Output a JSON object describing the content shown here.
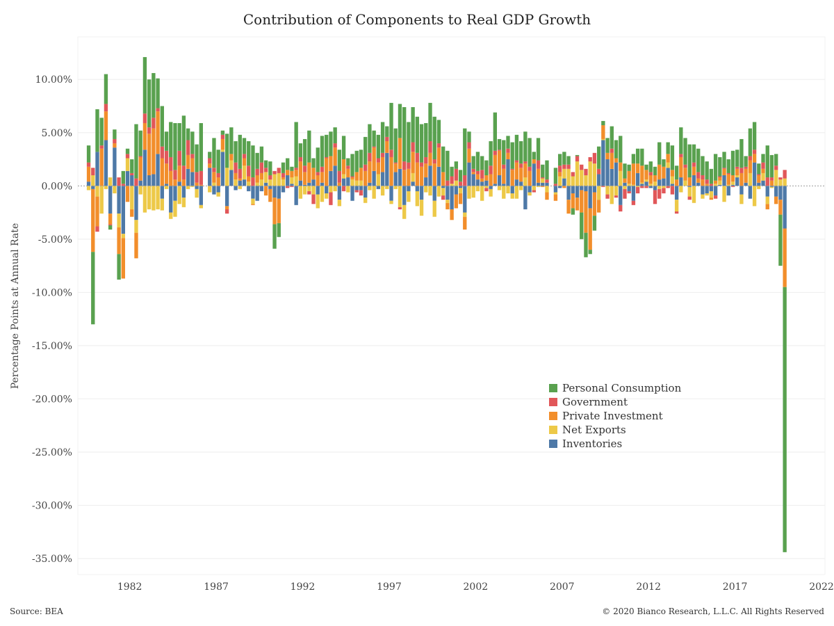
{
  "title": "Contribution of Components to Real GDP Growth",
  "footer": {
    "source": "Source: BEA",
    "copyright": "© 2020 Bianco Research, L.L.C. All Rights Reserved"
  },
  "chart_data": {
    "type": "bar",
    "stacked": true,
    "title": "Contribution of Components to Real GDP Growth",
    "xlabel": "",
    "ylabel": "Percentage Points at Annual Rate",
    "ylim": [
      -36.5,
      14
    ],
    "xlim": [
      1979.5,
      2022.7
    ],
    "y_ticks": [
      10,
      5,
      0,
      -5,
      -10,
      -15,
      -20,
      -25,
      -30,
      -35
    ],
    "y_tick_labels": [
      "10.00%",
      "5.00%",
      "0.00%",
      "-5.00%",
      "-10.00%",
      "-15.00%",
      "-20.00%",
      "-25.00%",
      "-30.00%",
      "-35.00%"
    ],
    "x_ticks": [
      1982,
      1987,
      1992,
      1997,
      2002,
      2007,
      2012,
      2017,
      2022
    ],
    "x_tick_labels": [
      "1982",
      "1987",
      "1992",
      "1997",
      "2002",
      "2007",
      "2012",
      "2017",
      "2022"
    ],
    "legend_position": "center-right",
    "grid": true,
    "series": [
      {
        "name": "Personal Consumption",
        "color": "#59a14f"
      },
      {
        "name": "Government",
        "color": "#e15759"
      },
      {
        "name": "Private Investment",
        "color": "#f28e2b"
      },
      {
        "name": "Net Exports",
        "color": "#edc948"
      },
      {
        "name": "Inventories",
        "color": "#4e79a7"
      }
    ],
    "quarters_columns": [
      "date",
      "Personal Consumption",
      "Government",
      "Private Investment",
      "Net Exports",
      "Inventories"
    ],
    "quarters": [
      [
        1980.0,
        1.6,
        0.4,
        1.4,
        -0.4,
        0.4
      ],
      [
        1980.25,
        -6.8,
        0.7,
        -5.9,
        1.0,
        -0.3
      ],
      [
        1980.5,
        4.0,
        -0.5,
        -2.8,
        -1.0,
        3.2
      ],
      [
        1980.75,
        2.6,
        0.3,
        3.5,
        -2.6,
        0.0
      ],
      [
        1981.0,
        2.8,
        0.7,
        2.7,
        -0.3,
        4.3
      ],
      [
        1981.25,
        -0.4,
        -0.1,
        -1.0,
        0.8,
        -2.6
      ],
      [
        1981.5,
        0.9,
        0.4,
        0.4,
        -0.7,
        3.6
      ],
      [
        1981.75,
        -2.4,
        0.8,
        -2.5,
        -1.3,
        -2.6
      ],
      [
        1982.0,
        1.2,
        0.2,
        -3.8,
        -0.4,
        -4.5
      ],
      [
        1982.25,
        0.5,
        0.4,
        -1.5,
        1.2,
        1.4
      ],
      [
        1982.5,
        1.3,
        0.2,
        -0.7,
        -2.2,
        1.0
      ],
      [
        1982.75,
        5.1,
        0.7,
        -2.4,
        -1.2,
        -3.2
      ],
      [
        1983.0,
        2.4,
        0.1,
        2.2,
        -0.8,
        0.5
      ],
      [
        1983.25,
        5.3,
        0.9,
        2.5,
        -2.5,
        3.4
      ],
      [
        1983.5,
        4.5,
        0.6,
        3.9,
        -2.2,
        1.0
      ],
      [
        1983.75,
        4.2,
        1.0,
        4.3,
        -2.3,
        1.1
      ],
      [
        1984.0,
        2.8,
        0.3,
        4.0,
        -2.2,
        3.0
      ],
      [
        1984.25,
        3.8,
        1.1,
        2.6,
        -1.1,
        -1.2
      ],
      [
        1984.5,
        1.8,
        1.2,
        1.9,
        -0.3,
        0.2
      ],
      [
        1984.75,
        3.3,
        1.3,
        1.4,
        -0.6,
        -2.5
      ],
      [
        1985.0,
        4.4,
        0.9,
        0.6,
        -1.5,
        -1.4
      ],
      [
        1985.25,
        2.6,
        1.4,
        1.5,
        -1.7,
        0.4
      ],
      [
        1985.5,
        4.7,
        1.3,
        0.6,
        -0.9,
        -1.1
      ],
      [
        1985.75,
        1.1,
        1.4,
        1.3,
        -0.3,
        1.6
      ],
      [
        1986.0,
        2.1,
        0.4,
        1.3,
        -0.1,
        1.3
      ],
      [
        1986.25,
        2.6,
        1.0,
        0.3,
        -0.8,
        -0.3
      ],
      [
        1986.5,
        4.5,
        1.3,
        0.1,
        -0.3,
        -1.8
      ],
      [
        1987.0,
        0.6,
        0.5,
        0.4,
        -0.6,
        1.7
      ],
      [
        1987.25,
        2.8,
        0.4,
        1.0,
        0.3,
        -0.8
      ],
      [
        1987.5,
        2.2,
        0.4,
        0.8,
        -0.4,
        -0.6
      ],
      [
        1987.75,
        0.4,
        0.4,
        1.0,
        0.2,
        3.2
      ],
      [
        1988.0,
        3.2,
        -0.4,
        -0.3,
        1.7,
        -1.9
      ],
      [
        1988.25,
        2.5,
        0.0,
        0.6,
        0.9,
        1.5
      ],
      [
        1988.5,
        2.0,
        1.0,
        0.6,
        0.6,
        -0.4
      ],
      [
        1988.75,
        3.2,
        0.9,
        0.2,
        -0.3,
        0.5
      ],
      [
        1989.0,
        1.5,
        0.4,
        0.7,
        1.3,
        0.6
      ],
      [
        1989.25,
        2.3,
        1.0,
        0.5,
        0.4,
        -0.5
      ],
      [
        1989.5,
        3.0,
        0.8,
        -0.1,
        -0.5,
        -1.2
      ],
      [
        1989.75,
        1.5,
        0.6,
        0.7,
        0.3,
        -1.4
      ],
      [
        1990.0,
        1.5,
        1.0,
        0.6,
        0.6,
        -0.5
      ],
      [
        1990.25,
        0.7,
        0.4,
        -0.9,
        1.0,
        0.3
      ],
      [
        1990.5,
        1.3,
        0.4,
        -1.2,
        0.6,
        -0.3
      ],
      [
        1990.75,
        -2.3,
        0.3,
        -2.5,
        1.1,
        -1.1
      ],
      [
        1991.0,
        -1.3,
        0.5,
        -2.3,
        1.2,
        -1.2
      ],
      [
        1991.25,
        1.0,
        0.4,
        0.2,
        0.6,
        -0.6
      ],
      [
        1991.5,
        1.1,
        -0.2,
        0.5,
        0.0,
        1.0
      ],
      [
        1991.75,
        0.4,
        -0.1,
        0.6,
        0.6,
        0.2
      ],
      [
        1992.0,
        4.3,
        0.2,
        0.6,
        0.9,
        -1.8
      ],
      [
        1992.25,
        1.3,
        0.4,
        1.8,
        -1.2,
        0.5
      ],
      [
        1992.5,
        2.5,
        0.6,
        1.2,
        -0.8,
        0.1
      ],
      [
        1992.75,
        3.0,
        -0.3,
        1.9,
        -0.5,
        0.3
      ],
      [
        1993.0,
        0.9,
        -0.9,
        1.1,
        -0.8,
        0.6
      ],
      [
        1993.25,
        2.3,
        0.3,
        1.0,
        -1.3,
        -0.8
      ],
      [
        1993.5,
        2.9,
        0.5,
        1.0,
        -1.5,
        0.3
      ],
      [
        1993.75,
        2.1,
        0.1,
        2.6,
        -0.5,
        -0.7
      ],
      [
        1994.0,
        2.3,
        -1.2,
        1.4,
        -0.6,
        1.4
      ],
      [
        1994.25,
        1.5,
        0.4,
        1.7,
        -0.5,
        1.9
      ],
      [
        1994.5,
        2.0,
        1.1,
        0.3,
        -0.6,
        -1.3
      ],
      [
        1994.75,
        2.2,
        -0.5,
        1.4,
        0.4,
        0.7
      ],
      [
        1995.0,
        0.7,
        0.3,
        0.8,
        -0.6,
        0.8
      ],
      [
        1995.25,
        2.1,
        0.1,
        0.2,
        0.6,
        -1.4
      ],
      [
        1995.5,
        2.0,
        -0.2,
        0.8,
        0.5,
        -0.4
      ],
      [
        1995.75,
        1.7,
        -0.5,
        1.2,
        0.5,
        -0.4
      ],
      [
        1996.0,
        2.6,
        0.6,
        1.4,
        -0.5,
        -1.1
      ],
      [
        1996.25,
        2.7,
        0.8,
        2.0,
        -0.4,
        0.3
      ],
      [
        1996.5,
        1.5,
        0.1,
        2.2,
        -1.2,
        1.4
      ],
      [
        1996.75,
        2.2,
        0.4,
        1.1,
        1.1,
        -0.3
      ],
      [
        1997.0,
        2.9,
        0.4,
        1.4,
        -0.9,
        1.3
      ],
      [
        1997.25,
        1.0,
        0.4,
        1.1,
        -0.3,
        3.1
      ],
      [
        1997.5,
        4.4,
        0.7,
        2.7,
        -0.3,
        -1.4
      ],
      [
        1997.75,
        3.2,
        0.1,
        0.8,
        -0.3,
        1.3
      ],
      [
        1998.0,
        3.2,
        -0.2,
        2.9,
        -2.0,
        1.6
      ],
      [
        1998.25,
        5.1,
        0.8,
        1.5,
        -1.3,
        -1.8
      ],
      [
        1998.5,
        3.8,
        0.6,
        1.6,
        -1.0,
        -0.5
      ],
      [
        1998.75,
        3.3,
        0.9,
        2.0,
        0.8,
        0.4
      ],
      [
        1999.0,
        3.4,
        0.9,
        2.2,
        -1.4,
        -0.5
      ],
      [
        1999.25,
        3.6,
        0.4,
        1.8,
        -1.5,
        -1.3
      ],
      [
        1999.5,
        3.2,
        0.6,
        1.3,
        -0.6,
        0.8
      ],
      [
        1999.75,
        3.6,
        1.1,
        1.2,
        -0.9,
        1.9
      ],
      [
        2000.0,
        4.0,
        0.4,
        2.1,
        -1.5,
        -1.4
      ],
      [
        2000.25,
        2.2,
        0.4,
        1.8,
        -1.0,
        1.8
      ],
      [
        2000.5,
        2.4,
        -0.4,
        1.3,
        -0.7,
        -0.2
      ],
      [
        2000.75,
        2.8,
        0.5,
        -0.6,
        -0.3,
        -1.3
      ],
      [
        2001.0,
        0.9,
        0.7,
        -1.0,
        0.2,
        -2.2
      ],
      [
        2001.25,
        0.7,
        1.1,
        -1.3,
        0.5,
        -0.8
      ],
      [
        2001.5,
        1.1,
        0.4,
        -1.0,
        -0.5,
        -0.2
      ],
      [
        2001.75,
        4.4,
        1.0,
        -1.2,
        -0.4,
        -2.5
      ],
      [
        2002.0,
        1.0,
        0.6,
        1.3,
        -1.2,
        2.2
      ],
      [
        2002.25,
        1.2,
        0.3,
        0.2,
        -1.1,
        1.1
      ],
      [
        2002.5,
        1.8,
        0.3,
        0.5,
        -0.5,
        0.6
      ],
      [
        2002.75,
        1.3,
        0.8,
        0.3,
        -1.4,
        0.4
      ],
      [
        2003.0,
        1.4,
        -0.3,
        0.5,
        -0.2,
        0.5
      ],
      [
        2003.25,
        2.3,
        0.8,
        1.1,
        -0.7,
        -0.3
      ],
      [
        2003.5,
        3.6,
        0.4,
        2.7,
        0.0,
        0.2
      ],
      [
        2003.75,
        1.0,
        0.1,
        2.3,
        -0.4,
        1.0
      ],
      [
        2004.0,
        2.3,
        0.4,
        1.4,
        -1.2,
        0.2
      ],
      [
        2004.25,
        1.2,
        0.4,
        0.6,
        -0.7,
        2.5
      ],
      [
        2004.5,
        2.5,
        0.1,
        1.5,
        -0.5,
        -0.7
      ],
      [
        2004.75,
        2.4,
        0.2,
        1.6,
        -1.2,
        0.6
      ],
      [
        2005.0,
        2.1,
        0.4,
        1.3,
        -0.4,
        0.4
      ],
      [
        2005.25,
        2.8,
        0.2,
        1.3,
        0.8,
        -2.2
      ],
      [
        2005.5,
        2.7,
        0.4,
        1.4,
        -0.3,
        -0.6
      ],
      [
        2005.75,
        0.7,
        -0.2,
        0.4,
        -0.4,
        2.1
      ],
      [
        2006.0,
        2.1,
        0.8,
        1.3,
        -0.1,
        0.3
      ],
      [
        2006.25,
        1.2,
        0.1,
        -0.1,
        0.4,
        0.3
      ],
      [
        2006.5,
        1.8,
        0.3,
        -0.7,
        -0.6,
        0.3
      ],
      [
        2007.0,
        1.5,
        0.2,
        -0.6,
        -0.2,
        -0.6
      ],
      [
        2007.25,
        1.1,
        0.6,
        0.4,
        0.9,
        -0.2
      ],
      [
        2007.5,
        1.2,
        0.4,
        -0.2,
        0.9,
        0.7
      ],
      [
        2007.75,
        0.8,
        0.4,
        -1.3,
        1.6,
        -1.3
      ],
      [
        2008.0,
        -0.6,
        0.4,
        -1.4,
        0.9,
        -0.7
      ],
      [
        2008.25,
        0.1,
        0.5,
        -1.2,
        2.3,
        -1.1
      ],
      [
        2008.5,
        -2.5,
        0.5,
        -2.1,
        1.5,
        -0.4
      ],
      [
        2008.75,
        -2.3,
        0.6,
        -3.9,
        1.0,
        -0.5
      ],
      [
        2009.0,
        -0.4,
        0.4,
        -3.9,
        2.3,
        -2.1
      ],
      [
        2009.25,
        -1.4,
        1.0,
        -2.2,
        2.1,
        -0.6
      ],
      [
        2009.5,
        2.1,
        0.5,
        -1.2,
        -1.3,
        1.1
      ],
      [
        2009.75,
        0.4,
        -0.1,
        1.3,
        0.1,
        4.3
      ],
      [
        2010.0,
        1.4,
        -0.4,
        0.6,
        -0.8,
        2.5
      ],
      [
        2010.25,
        2.1,
        0.4,
        1.5,
        -1.7,
        1.6
      ],
      [
        2010.5,
        1.7,
        -0.2,
        0.4,
        -0.9,
        2.2
      ],
      [
        2010.75,
        2.5,
        -0.6,
        0.8,
        1.4,
        -1.8
      ],
      [
        2011.0,
        1.4,
        -0.9,
        0.4,
        -0.3,
        0.3
      ],
      [
        2011.25,
        0.6,
        -0.2,
        1.2,
        0.2,
        -0.5
      ],
      [
        2011.5,
        0.9,
        -0.4,
        2.0,
        0.1,
        -1.4
      ],
      [
        2011.75,
        1.4,
        -0.6,
        0.9,
        -0.1,
        1.2
      ],
      [
        2012.0,
        1.6,
        -0.2,
        1.6,
        0.1,
        0.2
      ],
      [
        2012.25,
        0.5,
        -0.2,
        0.9,
        0.2,
        0.4
      ],
      [
        2012.5,
        1.0,
        0.3,
        0.8,
        0.2,
        -0.2
      ],
      [
        2012.75,
        0.8,
        -1.3,
        0.6,
        0.4,
        -0.4
      ],
      [
        2013.0,
        2.1,
        -0.9,
        1.4,
        -0.3,
        0.6
      ],
      [
        2013.25,
        0.7,
        -0.5,
        1.1,
        -0.2,
        0.7
      ],
      [
        2013.5,
        1.1,
        -0.2,
        0.8,
        0.5,
        1.7
      ],
      [
        2013.75,
        2.3,
        -0.8,
        0.6,
        0.7,
        0.2
      ],
      [
        2014.0,
        1.3,
        -0.2,
        0.6,
        -1.1,
        -1.3
      ],
      [
        2014.25,
        2.5,
        0.3,
        1.9,
        -0.6,
        0.8
      ],
      [
        2014.5,
        2.5,
        0.3,
        1.2,
        0.5,
        0.0
      ],
      [
        2014.75,
        3.1,
        -0.3,
        0.8,
        -0.9,
        -0.1
      ],
      [
        2015.0,
        1.7,
        0.4,
        0.8,
        -1.6,
        1.0
      ],
      [
        2015.25,
        2.2,
        0.6,
        0.4,
        0.0,
        0.3
      ],
      [
        2015.5,
        1.8,
        0.4,
        0.6,
        -0.4,
        -0.8
      ],
      [
        2015.75,
        1.7,
        0.4,
        0.2,
        -0.2,
        -0.7
      ],
      [
        2016.0,
        1.4,
        0.2,
        -0.2,
        -0.6,
        -0.5
      ],
      [
        2016.25,
        2.5,
        -0.3,
        0.3,
        0.2,
        -0.9
      ],
      [
        2016.5,
        1.8,
        0.1,
        0.3,
        0.4,
        0.1
      ],
      [
        2016.75,
        1.5,
        0.1,
        0.6,
        -1.5,
        1.0
      ],
      [
        2017.0,
        1.3,
        0.1,
        1.0,
        0.1,
        -0.9
      ],
      [
        2017.25,
        2.3,
        -0.1,
        0.6,
        0.3,
        0.1
      ],
      [
        2017.5,
        1.6,
        0.2,
        0.6,
        0.2,
        0.8
      ],
      [
        2017.75,
        2.7,
        0.5,
        1.2,
        -0.9,
        -0.8
      ],
      [
        2018.0,
        1.0,
        0.2,
        1.3,
        0.0,
        0.3
      ],
      [
        2018.25,
        2.6,
        0.4,
        1.2,
        1.2,
        -1.2
      ],
      [
        2018.5,
        2.6,
        0.4,
        0.8,
        -1.9,
        2.2
      ],
      [
        2018.75,
        1.0,
        0.1,
        0.7,
        -0.3,
        0.3
      ],
      [
        2019.0,
        0.8,
        0.6,
        0.4,
        0.7,
        0.5
      ],
      [
        2019.25,
        3.0,
        0.8,
        -0.5,
        -0.7,
        -1.0
      ],
      [
        2019.5,
        2.1,
        0.3,
        0.5,
        -0.1,
        -0.1
      ],
      [
        2019.75,
        1.1,
        0.4,
        -0.7,
        1.5,
        -1.0
      ],
      [
        2020.0,
        -4.8,
        0.2,
        -1.4,
        0.6,
        -1.3
      ],
      [
        2020.25,
        -24.9,
        0.8,
        -5.5,
        0.7,
        -4.0
      ]
    ]
  }
}
